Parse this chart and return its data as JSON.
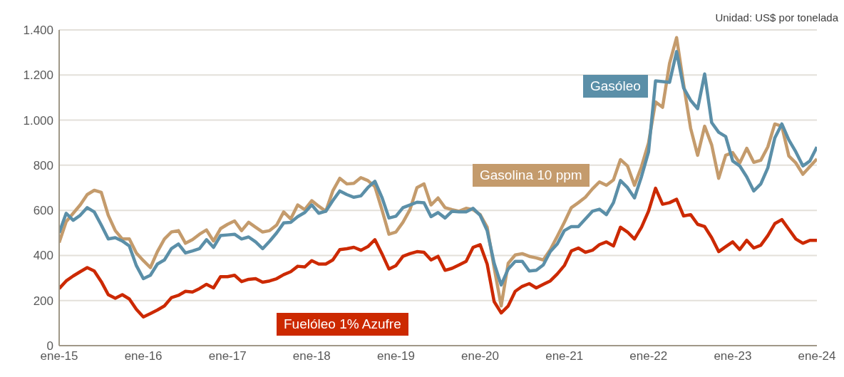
{
  "chart_data": {
    "type": "line",
    "annotations": [
      "Unidad: US$ por tonelada"
    ],
    "xlim": [
      "2015-01",
      "2024-01"
    ],
    "xticks": [
      {
        "value": "2015-01",
        "label": "ene-15"
      },
      {
        "value": "2016-01",
        "label": "ene-16"
      },
      {
        "value": "2017-01",
        "label": "ene-17"
      },
      {
        "value": "2018-01",
        "label": "ene-18"
      },
      {
        "value": "2019-01",
        "label": "ene-19"
      },
      {
        "value": "2020-01",
        "label": "ene-20"
      },
      {
        "value": "2021-01",
        "label": "ene-21"
      },
      {
        "value": "2022-01",
        "label": "ene-22"
      },
      {
        "value": "2023-01",
        "label": "ene-23"
      },
      {
        "value": "2024-01",
        "label": "ene-24"
      }
    ],
    "ylim": [
      0,
      1400
    ],
    "yticks": [
      0,
      200,
      400,
      600,
      800,
      {
        "value": 1000,
        "label": "1.000"
      },
      {
        "value": 1200,
        "label": "1.200"
      },
      {
        "value": 1400,
        "label": "1.400"
      }
    ],
    "grid": "y",
    "line_style": "solid",
    "legend": false,
    "x": [
      "2015-01",
      "2015-02",
      "2015-03",
      "2015-04",
      "2015-05",
      "2015-06",
      "2015-07",
      "2015-08",
      "2015-09",
      "2015-10",
      "2015-11",
      "2015-12",
      "2016-01",
      "2016-02",
      "2016-03",
      "2016-04",
      "2016-05",
      "2016-06",
      "2016-07",
      "2016-08",
      "2016-09",
      "2016-10",
      "2016-11",
      "2016-12",
      "2017-01",
      "2017-02",
      "2017-03",
      "2017-04",
      "2017-05",
      "2017-06",
      "2017-07",
      "2017-08",
      "2017-09",
      "2017-10",
      "2017-11",
      "2017-12",
      "2018-01",
      "2018-02",
      "2018-03",
      "2018-04",
      "2018-05",
      "2018-06",
      "2018-07",
      "2018-08",
      "2018-09",
      "2018-10",
      "2018-11",
      "2018-12",
      "2019-01",
      "2019-02",
      "2019-03",
      "2019-04",
      "2019-05",
      "2019-06",
      "2019-07",
      "2019-08",
      "2019-09",
      "2019-10",
      "2019-11",
      "2019-12",
      "2020-01",
      "2020-02",
      "2020-03",
      "2020-04",
      "2020-05",
      "2020-06",
      "2020-07",
      "2020-08",
      "2020-09",
      "2020-10",
      "2020-11",
      "2020-12",
      "2021-01",
      "2021-02",
      "2021-03",
      "2021-04",
      "2021-05",
      "2021-06",
      "2021-07",
      "2021-08",
      "2021-09",
      "2021-10",
      "2021-11",
      "2021-12",
      "2022-01",
      "2022-02",
      "2022-03",
      "2022-04",
      "2022-05",
      "2022-06",
      "2022-07",
      "2022-08",
      "2022-09",
      "2022-10",
      "2022-11",
      "2022-12",
      "2023-01",
      "2023-02",
      "2023-03",
      "2023-04",
      "2023-05",
      "2023-06",
      "2023-07",
      "2023-08",
      "2023-09",
      "2023-10",
      "2023-11",
      "2023-12",
      "2024-01"
    ],
    "series": [
      {
        "name": "Gasolina 10 ppm",
        "color": "#c49b6c",
        "values": [
          457,
          550,
          587,
          624,
          670,
          689,
          680,
          578,
          510,
          473,
          473,
          411,
          377,
          346,
          417,
          473,
          504,
          510,
          454,
          470,
          494,
          513,
          464,
          519,
          538,
          553,
          510,
          547,
          525,
          504,
          510,
          535,
          593,
          562,
          624,
          603,
          643,
          618,
          596,
          686,
          742,
          717,
          720,
          745,
          732,
          705,
          603,
          494,
          504,
          547,
          603,
          701,
          717,
          624,
          655,
          612,
          603,
          596,
          609,
          603,
          581,
          525,
          346,
          176,
          365,
          402,
          408,
          396,
          389,
          380,
          426,
          485,
          547,
          612,
          634,
          658,
          695,
          726,
          711,
          735,
          825,
          797,
          711,
          794,
          899,
          1081,
          1057,
          1252,
          1366,
          1159,
          964,
          844,
          973,
          890,
          742,
          844,
          856,
          810,
          875,
          813,
          822,
          881,
          983,
          973,
          841,
          810,
          760,
          794,
          828
        ]
      },
      {
        "name": "Gasóleo",
        "color": "#5b8fa8",
        "values": [
          500,
          587,
          556,
          578,
          612,
          593,
          535,
          473,
          479,
          464,
          442,
          355,
          297,
          312,
          362,
          380,
          430,
          451,
          411,
          420,
          430,
          470,
          436,
          488,
          491,
          494,
          473,
          482,
          460,
          430,
          463,
          500,
          544,
          547,
          572,
          590,
          624,
          587,
          596,
          643,
          686,
          670,
          658,
          664,
          701,
          729,
          658,
          566,
          574,
          612,
          624,
          636,
          634,
          572,
          590,
          566,
          596,
          593,
          593,
          609,
          578,
          510,
          365,
          269,
          340,
          374,
          374,
          331,
          334,
          358,
          417,
          451,
          510,
          528,
          528,
          562,
          596,
          605,
          581,
          634,
          732,
          701,
          655,
          750,
          859,
          1174,
          1171,
          1168,
          1304,
          1143,
          1088,
          1051,
          1205,
          989,
          946,
          927,
          819,
          797,
          748,
          686,
          717,
          788,
          921,
          983,
          912,
          859,
          797,
          819,
          881
        ]
      },
      {
        "name": "Fuelóleo 1% Azufre",
        "color": "#cc2900",
        "values": [
          253,
          287,
          309,
          328,
          346,
          331,
          284,
          226,
          210,
          226,
          207,
          161,
          127,
          142,
          158,
          176,
          213,
          223,
          241,
          238,
          253,
          272,
          256,
          306,
          306,
          312,
          284,
          294,
          297,
          281,
          287,
          297,
          315,
          328,
          352,
          349,
          377,
          362,
          362,
          380,
          426,
          430,
          436,
          423,
          439,
          470,
          408,
          340,
          355,
          396,
          408,
          417,
          414,
          380,
          396,
          334,
          343,
          358,
          374,
          436,
          448,
          362,
          195,
          145,
          176,
          241,
          263,
          275,
          256,
          272,
          287,
          318,
          355,
          420,
          433,
          414,
          423,
          448,
          460,
          442,
          525,
          504,
          473,
          525,
          596,
          698,
          627,
          634,
          649,
          575,
          581,
          538,
          528,
          479,
          417,
          439,
          460,
          426,
          467,
          433,
          445,
          488,
          541,
          559,
          516,
          473,
          454,
          467,
          467
        ]
      }
    ]
  }
}
